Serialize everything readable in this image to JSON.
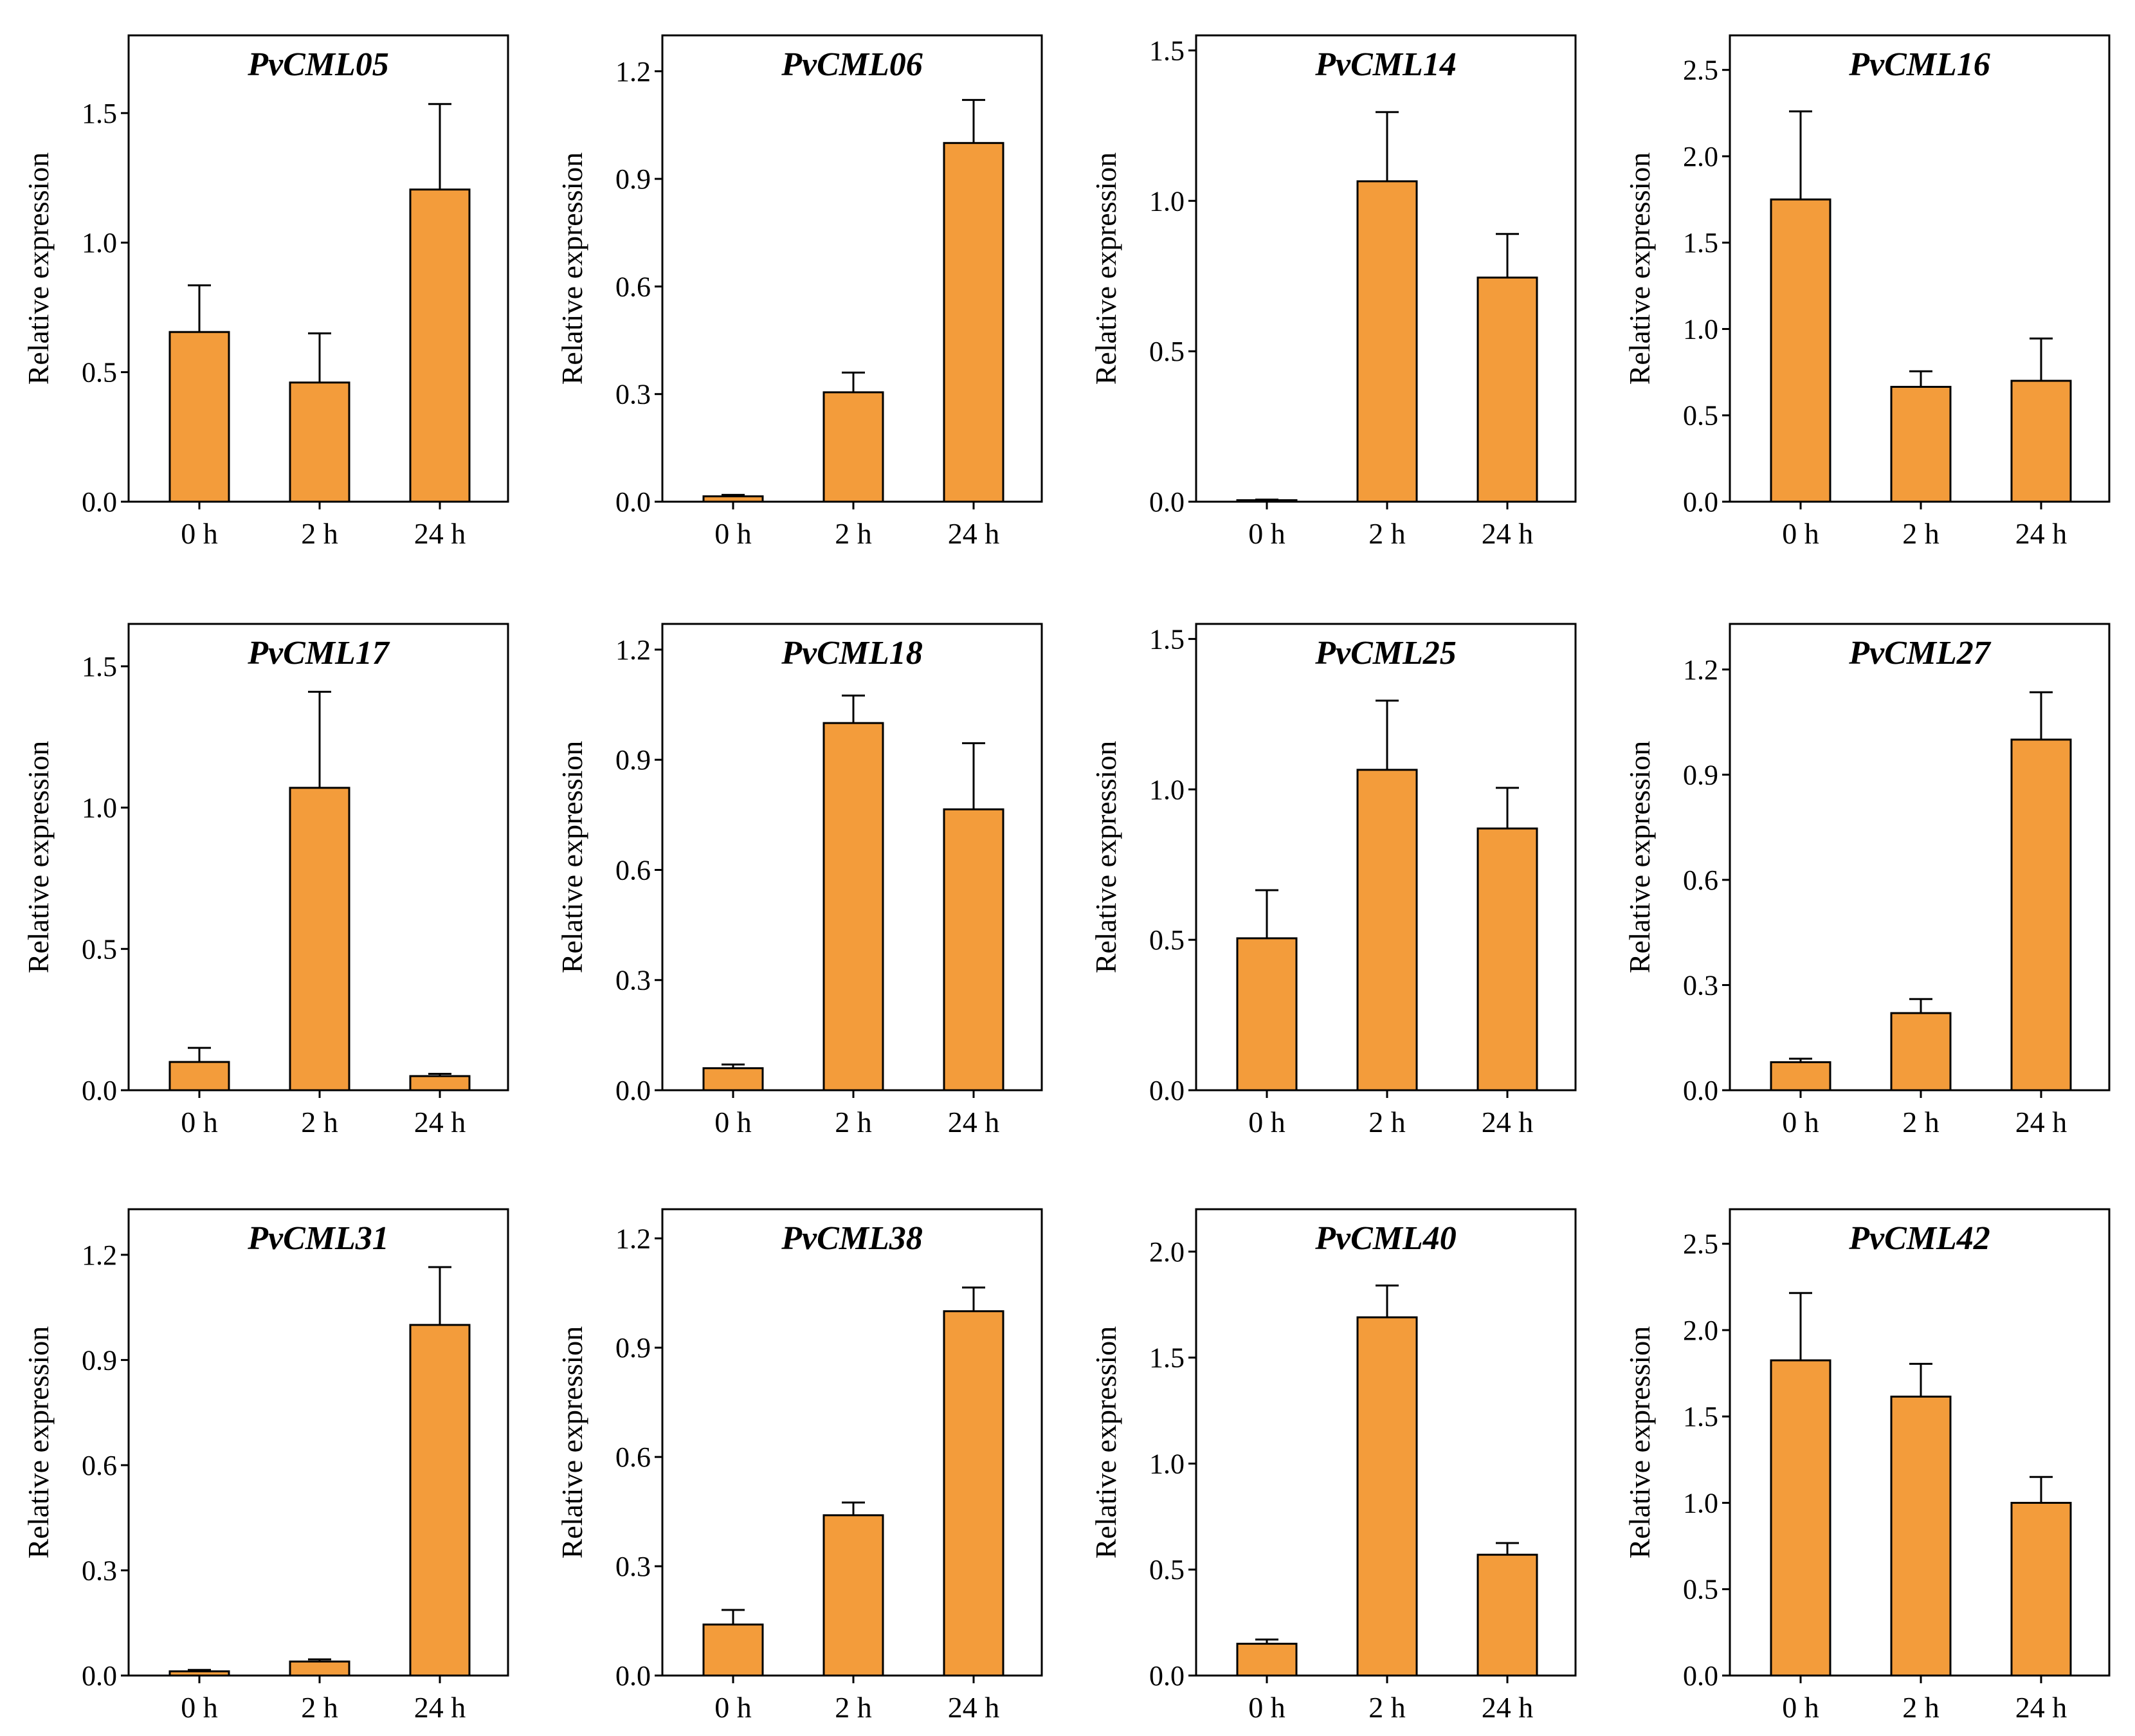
{
  "colors": {
    "bar": "#F39C3B",
    "stroke": "#000000",
    "background": "#ffffff"
  },
  "chart_data": [
    {
      "type": "bar",
      "title": "PvCML05",
      "ylabel": "Relative expression",
      "categories": [
        "0 h",
        "2 h",
        "24 h"
      ],
      "values": [
        0.655,
        0.46,
        1.205
      ],
      "errors": [
        0.18,
        0.19,
        0.33
      ],
      "ylim": [
        0,
        1.8
      ],
      "yticks": [
        0.0,
        0.5,
        1.0,
        1.5
      ],
      "ytick_labels": [
        "0.0",
        "0.5",
        "1.0",
        "1.5"
      ]
    },
    {
      "type": "bar",
      "title": "PvCML06",
      "ylabel": "Relative expression",
      "categories": [
        "0 h",
        "2 h",
        "24 h"
      ],
      "values": [
        0.015,
        0.305,
        1.0
      ],
      "errors": [
        0.004,
        0.055,
        0.12
      ],
      "ylim": [
        0,
        1.3
      ],
      "yticks": [
        0.0,
        0.3,
        0.6,
        0.9,
        1.2
      ],
      "ytick_labels": [
        "0.0",
        "0.3",
        "0.6",
        "0.9",
        "1.2"
      ]
    },
    {
      "type": "bar",
      "title": "PvCML14",
      "ylabel": "Relative expression",
      "categories": [
        "0 h",
        "2 h",
        "24 h"
      ],
      "values": [
        0.005,
        1.065,
        0.745
      ],
      "errors": [
        0.002,
        0.23,
        0.145
      ],
      "ylim": [
        0,
        1.55
      ],
      "yticks": [
        0.0,
        0.5,
        1.0,
        1.5
      ],
      "ytick_labels": [
        "0.0",
        "0.5",
        "1.0",
        "1.5"
      ]
    },
    {
      "type": "bar",
      "title": "PvCML16",
      "ylabel": "Relative expression",
      "categories": [
        "0 h",
        "2 h",
        "24 h"
      ],
      "values": [
        1.75,
        0.665,
        0.7
      ],
      "errors": [
        0.51,
        0.09,
        0.245
      ],
      "ylim": [
        0,
        2.7
      ],
      "yticks": [
        0.0,
        0.5,
        1.0,
        1.5,
        2.0,
        2.5
      ],
      "ytick_labels": [
        "0.0",
        "0.5",
        "1.0",
        "1.5",
        "2.0",
        "2.5"
      ]
    },
    {
      "type": "bar",
      "title": "PvCML17",
      "ylabel": "Relative expression",
      "categories": [
        "0 h",
        "2 h",
        "24 h"
      ],
      "values": [
        0.1,
        1.07,
        0.05
      ],
      "errors": [
        0.05,
        0.34,
        0.008
      ],
      "ylim": [
        0,
        1.65
      ],
      "yticks": [
        0.0,
        0.5,
        1.0,
        1.5
      ],
      "ytick_labels": [
        "0.0",
        "0.5",
        "1.0",
        "1.5"
      ]
    },
    {
      "type": "bar",
      "title": "PvCML18",
      "ylabel": "Relative expression",
      "categories": [
        "0 h",
        "2 h",
        "24 h"
      ],
      "values": [
        0.06,
        1.0,
        0.765
      ],
      "errors": [
        0.01,
        0.075,
        0.18
      ],
      "ylim": [
        0,
        1.27
      ],
      "yticks": [
        0.0,
        0.3,
        0.6,
        0.9,
        1.2
      ],
      "ytick_labels": [
        "0.0",
        "0.3",
        "0.6",
        "0.9",
        "1.2"
      ]
    },
    {
      "type": "bar",
      "title": "PvCML25",
      "ylabel": "Relative expression",
      "categories": [
        "0 h",
        "2 h",
        "24 h"
      ],
      "values": [
        0.505,
        1.065,
        0.87
      ],
      "errors": [
        0.16,
        0.23,
        0.135
      ],
      "ylim": [
        0,
        1.55
      ],
      "yticks": [
        0.0,
        0.5,
        1.0,
        1.5
      ],
      "ytick_labels": [
        "0.0",
        "0.5",
        "1.0",
        "1.5"
      ]
    },
    {
      "type": "bar",
      "title": "PvCML27",
      "ylabel": "Relative expression",
      "categories": [
        "0 h",
        "2 h",
        "24 h"
      ],
      "values": [
        0.08,
        0.22,
        1.0
      ],
      "errors": [
        0.01,
        0.04,
        0.135
      ],
      "ylim": [
        0,
        1.33
      ],
      "yticks": [
        0.0,
        0.3,
        0.6,
        0.9,
        1.2
      ],
      "ytick_labels": [
        "0.0",
        "0.3",
        "0.6",
        "0.9",
        "1.2"
      ]
    },
    {
      "type": "bar",
      "title": "PvCML31",
      "ylabel": "Relative expression",
      "categories": [
        "0 h",
        "2 h",
        "24 h"
      ],
      "values": [
        0.012,
        0.04,
        1.0
      ],
      "errors": [
        0.004,
        0.006,
        0.165
      ],
      "ylim": [
        0,
        1.33
      ],
      "yticks": [
        0.0,
        0.3,
        0.6,
        0.9,
        1.2
      ],
      "ytick_labels": [
        "0.0",
        "0.3",
        "0.6",
        "0.9",
        "1.2"
      ]
    },
    {
      "type": "bar",
      "title": "PvCML38",
      "ylabel": "Relative expression",
      "categories": [
        "0 h",
        "2 h",
        "24 h"
      ],
      "values": [
        0.14,
        0.44,
        1.0
      ],
      "errors": [
        0.04,
        0.035,
        0.065
      ],
      "ylim": [
        0,
        1.28
      ],
      "yticks": [
        0.0,
        0.3,
        0.6,
        0.9,
        1.2
      ],
      "ytick_labels": [
        "0.0",
        "0.3",
        "0.6",
        "0.9",
        "1.2"
      ]
    },
    {
      "type": "bar",
      "title": "PvCML40",
      "ylabel": "Relative expression",
      "categories": [
        "0 h",
        "2 h",
        "24 h"
      ],
      "values": [
        0.15,
        1.69,
        0.57
      ],
      "errors": [
        0.02,
        0.15,
        0.055
      ],
      "ylim": [
        0,
        2.2
      ],
      "yticks": [
        0.0,
        0.5,
        1.0,
        1.5,
        2.0
      ],
      "ytick_labels": [
        "0.0",
        "0.5",
        "1.0",
        "1.5",
        "2.0"
      ]
    },
    {
      "type": "bar",
      "title": "PvCML42",
      "ylabel": "Relative expression",
      "categories": [
        "0 h",
        "2 h",
        "24 h"
      ],
      "values": [
        1.825,
        1.615,
        1.0
      ],
      "errors": [
        0.39,
        0.19,
        0.15
      ],
      "ylim": [
        0,
        2.7
      ],
      "yticks": [
        0.0,
        0.5,
        1.0,
        1.5,
        2.0,
        2.5
      ],
      "ytick_labels": [
        "0.0",
        "0.5",
        "1.0",
        "1.5",
        "2.0",
        "2.5"
      ]
    }
  ]
}
